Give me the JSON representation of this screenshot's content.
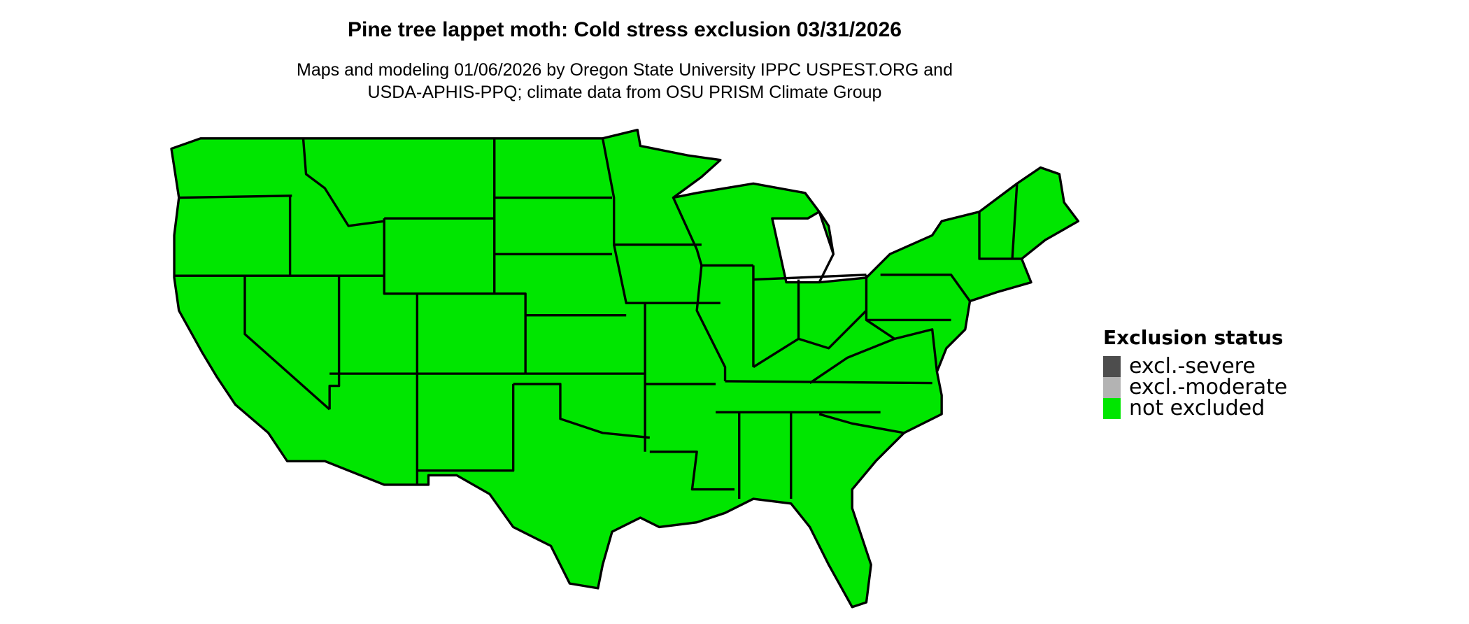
{
  "title": "Pine tree lappet moth: Cold stress exclusion 03/31/2026",
  "subtitle_line1": "Maps and modeling 01/06/2026 by Oregon State University IPPC USPEST.ORG and",
  "subtitle_line2": "USDA-APHIS-PPQ; climate data from OSU PRISM Climate Group",
  "map": {
    "region": "Contiguous United States",
    "fill_color": "#00E600",
    "border_color": "#000000",
    "status_shown": "not excluded"
  },
  "legend": {
    "title": "Exclusion status",
    "items": [
      {
        "label": "excl.-severe",
        "color": "#4D4D4D"
      },
      {
        "label": "excl.-moderate",
        "color": "#B3B3B3"
      },
      {
        "label": "not excluded",
        "color": "#00E600"
      }
    ]
  }
}
